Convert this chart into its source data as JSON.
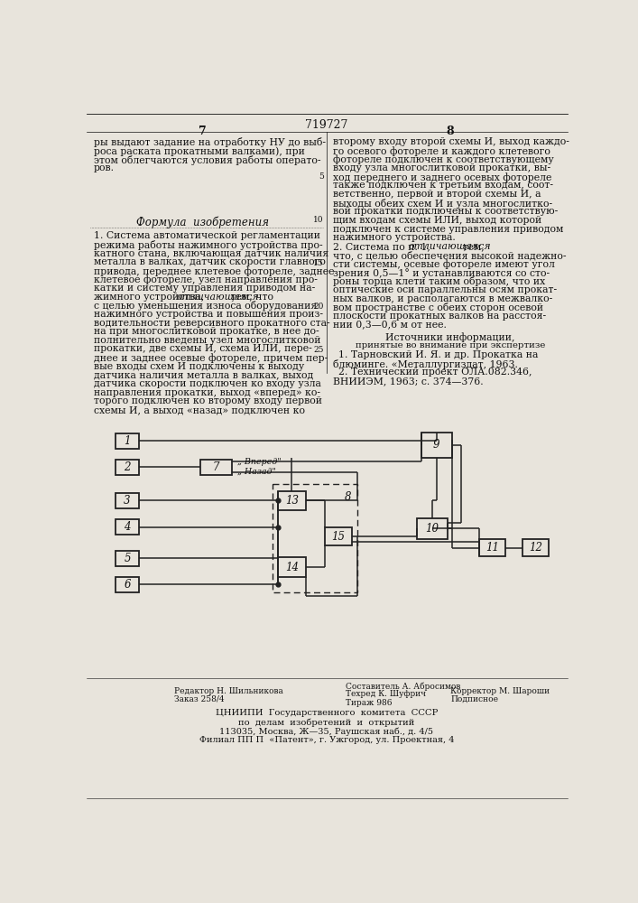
{
  "page_number_center": "719727",
  "page_number_left": "7",
  "page_number_right": "8",
  "bg_color": "#e8e4dc",
  "text_color": "#111111",
  "diagram_color": "#222222",
  "text_left_top": [
    "ры выдают задание на отработку НУ до выб-",
    "роса раската прокатными валками), при",
    "этом облегчаются условия работы операто-",
    "ров."
  ],
  "text_right_top": [
    "второму входу второй схемы И, выход каждо-",
    "го осевого фотореле и каждого клетевого",
    "фотореле подключен к соответствующему",
    "входу узла многослитковой прокатки, вы-",
    "ход переднего и заднего осевых фотореле",
    "также подключен к третьим входам, соот-",
    "ветственно, первой и второй схемы И, а",
    "выходы обеих схем И и узла многослитко-",
    "вой прокатки подключены к соответствую-",
    "щим входам схемы ИЛИ, выход которой",
    "подключен к системе управления приводом",
    "нажимного устройства."
  ],
  "formula_title": "Формула  изобретения",
  "claim1_lines": [
    "1. Система автоматической регламентации",
    "режима работы нажимного устройства про-",
    "катного стана, включающая датчик наличия",
    "металла в валках, датчик скорости главного",
    "привода, переднее клетевое фотореле, заднее",
    "клетевое фотореле, узел направления про-",
    "катки и систему управления приводом на-",
    "жимного устройства, ",
    "тем, что",
    "с целью уменьшения износа оборудования",
    "нажимного устройства и повышения произ-",
    "водительности реверсивного прокатного ста-",
    "на при многослитковой прокатке, в нее до-",
    "полнительно введены узел многослитковой",
    "прокатки, две схемы И, схема ИЛИ, пере-",
    "днее и заднее осевые фотореле, причем пер-",
    "вые входы схем И подключены к выходу",
    "датчика наличия металла в валках, выход",
    "датчика скорости подключен ко входу узла",
    "направления прокатки, выход «вперед» ко-",
    "торого подключен ко второму входу первой",
    "схемы И, а выход «назад» подключен ко"
  ],
  "claim2_lines": [
    "2. Система по п. 1, ",
    " тем,",
    "что, с целью обеспечения высокой надежно-",
    "сти системы, осевые фотореле имеют угол",
    "зрения 0,5—1° и устанавливаются со сто-",
    "роны торца клети таким образом, что их",
    "оптические оси параллельны осям прокат-",
    "ных валков, и располагаются в межвалко-",
    "вом пространстве с обеих сторон осевой",
    "плоскости прокатных валков на расстоя-",
    "нии 0,3—0,6 м от нее."
  ],
  "sources_header": "Источники информации,",
  "sources_sub": "принятые во внимание при экспертизе",
  "source1a": "1. Тарновский И. Я. и др. Прокатка на",
  "source1b": "блюминге. «Металлургиздат, 1963.",
  "source2a": "2. Технический проект ОЛА.082.346,",
  "source2b": "ВНИИЭМ, 1963; с. 374—376.",
  "footer1l": "Редактор Н. Шильникова",
  "footer1c": "Составитель А. Абросимов",
  "footer2l": "Заказ 258/4",
  "footer2c": "Техред К. Шуфрич",
  "footer2r": "Корректор М. Шароши",
  "footer3c": "Тираж 986",
  "footer3r": "Подписное",
  "footer_org1": "ЦНИИПИ  Государственного  комитета  СССР",
  "footer_org2": "по  делам  изобретений  и  открытий",
  "footer_addr1": "113035, Москва, Ж—35, Раушская наб., д. 4/5",
  "footer_addr2": "Филиал ПП П  «Патент», г. Ужгород, ул. Проектная, 4"
}
